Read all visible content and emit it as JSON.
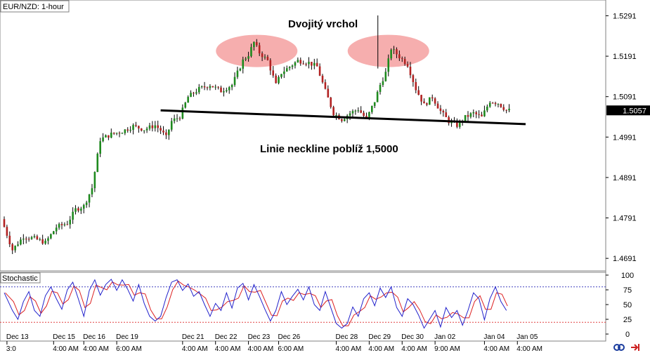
{
  "chart_data": {
    "type": "candlestick",
    "symbol_label": "EUR/NZD: 1-hour",
    "current_price_label": "1.5057",
    "ylim": [
      1.466,
      1.533
    ],
    "y_ticks": [
      "1.5291",
      "1.5191",
      "1.5091",
      "1.4991",
      "1.4891",
      "1.4791",
      "1.4691"
    ],
    "annotations": {
      "double_top": "Dvojitý vrchol",
      "neckline": "Linie neckline poblíž 1,5000"
    },
    "neckline": {
      "start_index": 57,
      "end_index": 190,
      "start_price": 1.5057,
      "end_price": 1.5023
    },
    "highlight_tops": [
      {
        "center_index": 92,
        "price": 1.5204
      },
      {
        "center_index": 140,
        "price": 1.5204
      }
    ],
    "price_path": [
      [
        0,
        1.4788
      ],
      [
        4,
        1.4712
      ],
      [
        8,
        1.4745
      ],
      [
        12,
        1.474
      ],
      [
        16,
        1.473
      ],
      [
        20,
        1.4768
      ],
      [
        24,
        1.4778
      ],
      [
        27,
        1.4812
      ],
      [
        30,
        1.482
      ],
      [
        33,
        1.4865
      ],
      [
        36,
        1.4985
      ],
      [
        40,
        1.4998
      ],
      [
        44,
        1.5005
      ],
      [
        48,
        1.5018
      ],
      [
        52,
        1.501
      ],
      [
        56,
        1.502
      ],
      [
        58,
        1.5008
      ],
      [
        60,
        1.499
      ],
      [
        62,
        1.503
      ],
      [
        65,
        1.5042
      ],
      [
        68,
        1.509
      ],
      [
        72,
        1.511
      ],
      [
        76,
        1.512
      ],
      [
        80,
        1.5105
      ],
      [
        84,
        1.512
      ],
      [
        88,
        1.518
      ],
      [
        90,
        1.5195
      ],
      [
        92,
        1.5225
      ],
      [
        94,
        1.52
      ],
      [
        97,
        1.518
      ],
      [
        100,
        1.512
      ],
      [
        102,
        1.515
      ],
      [
        105,
        1.5165
      ],
      [
        108,
        1.518
      ],
      [
        112,
        1.5175
      ],
      [
        115,
        1.5165
      ],
      [
        118,
        1.5105
      ],
      [
        121,
        1.505
      ],
      [
        124,
        1.5035
      ],
      [
        127,
        1.505
      ],
      [
        130,
        1.506
      ],
      [
        133,
        1.5035
      ],
      [
        136,
        1.508
      ],
      [
        138,
        1.512
      ],
      [
        140,
        1.515
      ],
      [
        142,
        1.521
      ],
      [
        145,
        1.519
      ],
      [
        148,
        1.517
      ],
      [
        151,
        1.511
      ],
      [
        154,
        1.507
      ],
      [
        157,
        1.509
      ],
      [
        160,
        1.5055
      ],
      [
        163,
        1.503
      ],
      [
        166,
        1.502
      ],
      [
        169,
        1.504
      ],
      [
        172,
        1.505
      ],
      [
        175,
        1.504
      ],
      [
        178,
        1.508
      ],
      [
        181,
        1.5075
      ],
      [
        184,
        1.5057
      ]
    ],
    "stochastic": {
      "label": "Stochastic",
      "ylim": [
        0,
        100
      ],
      "y_ticks": [
        "100",
        "75",
        "50",
        "25",
        "0"
      ],
      "levels": [
        80,
        20
      ],
      "path": [
        [
          0,
          70
        ],
        [
          3,
          40
        ],
        [
          5,
          25
        ],
        [
          7,
          55
        ],
        [
          9,
          72
        ],
        [
          11,
          40
        ],
        [
          13,
          30
        ],
        [
          15,
          65
        ],
        [
          17,
          80
        ],
        [
          19,
          60
        ],
        [
          21,
          42
        ],
        [
          23,
          75
        ],
        [
          25,
          88
        ],
        [
          27,
          60
        ],
        [
          29,
          30
        ],
        [
          31,
          74
        ],
        [
          33,
          92
        ],
        [
          35,
          66
        ],
        [
          37,
          84
        ],
        [
          39,
          93
        ],
        [
          41,
          74
        ],
        [
          43,
          92
        ],
        [
          45,
          76
        ],
        [
          47,
          56
        ],
        [
          49,
          84
        ],
        [
          51,
          52
        ],
        [
          53,
          30
        ],
        [
          55,
          22
        ],
        [
          57,
          30
        ],
        [
          59,
          62
        ],
        [
          61,
          88
        ],
        [
          63,
          92
        ],
        [
          65,
          74
        ],
        [
          67,
          85
        ],
        [
          69,
          64
        ],
        [
          71,
          72
        ],
        [
          73,
          50
        ],
        [
          75,
          30
        ],
        [
          77,
          52
        ],
        [
          79,
          40
        ],
        [
          81,
          70
        ],
        [
          83,
          44
        ],
        [
          85,
          78
        ],
        [
          87,
          86
        ],
        [
          89,
          58
        ],
        [
          91,
          84
        ],
        [
          93,
          64
        ],
        [
          95,
          42
        ],
        [
          97,
          22
        ],
        [
          99,
          40
        ],
        [
          101,
          72
        ],
        [
          103,
          50
        ],
        [
          105,
          64
        ],
        [
          107,
          76
        ],
        [
          109,
          58
        ],
        [
          111,
          80
        ],
        [
          113,
          50
        ],
        [
          115,
          40
        ],
        [
          117,
          72
        ],
        [
          119,
          45
        ],
        [
          121,
          18
        ],
        [
          123,
          10
        ],
        [
          125,
          18
        ],
        [
          127,
          46
        ],
        [
          129,
          30
        ],
        [
          131,
          60
        ],
        [
          133,
          70
        ],
        [
          135,
          48
        ],
        [
          137,
          78
        ],
        [
          139,
          62
        ],
        [
          141,
          80
        ],
        [
          143,
          45
        ],
        [
          145,
          30
        ],
        [
          147,
          60
        ],
        [
          149,
          50
        ],
        [
          151,
          32
        ],
        [
          153,
          10
        ],
        [
          155,
          25
        ],
        [
          157,
          40
        ],
        [
          159,
          12
        ],
        [
          161,
          45
        ],
        [
          163,
          28
        ],
        [
          165,
          40
        ],
        [
          167,
          15
        ],
        [
          169,
          40
        ],
        [
          171,
          70
        ],
        [
          173,
          60
        ],
        [
          175,
          24
        ],
        [
          177,
          60
        ],
        [
          179,
          80
        ],
        [
          181,
          55
        ],
        [
          183,
          40
        ]
      ]
    },
    "x_ticks_row1": [
      {
        "index": 1,
        "label": "Dec 13"
      },
      {
        "index": 18,
        "label": "Dec 15"
      },
      {
        "index": 29,
        "label": "Dec 16"
      },
      {
        "index": 41,
        "label": "Dec 19"
      },
      {
        "index": 65,
        "label": "Dec 21"
      },
      {
        "index": 77,
        "label": "Dec 22"
      },
      {
        "index": 89,
        "label": "Dec 23"
      },
      {
        "index": 100,
        "label": "Dec 26"
      },
      {
        "index": 121,
        "label": "Dec 28"
      },
      {
        "index": 133,
        "label": "Dec 29"
      },
      {
        "index": 145,
        "label": "Dec 30"
      },
      {
        "index": 157,
        "label": "Jan 02"
      },
      {
        "index": 175,
        "label": "Jan 04"
      },
      {
        "index": 187,
        "label": "Jan 05"
      }
    ],
    "x_ticks_row2": [
      {
        "index": 1,
        "label": "3:0"
      },
      {
        "index": 18,
        "label": "4:00 AM"
      },
      {
        "index": 29,
        "label": "4:00 AM"
      },
      {
        "index": 41,
        "label": "6:00 AM"
      },
      {
        "index": 65,
        "label": "4:00 AM"
      },
      {
        "index": 77,
        "label": "4:00 AM"
      },
      {
        "index": 89,
        "label": "4:00 AM"
      },
      {
        "index": 100,
        "label": "6:00 AM"
      },
      {
        "index": 121,
        "label": "4:00 AM"
      },
      {
        "index": 133,
        "label": "4:00 AM"
      },
      {
        "index": 145,
        "label": "4:00 AM"
      },
      {
        "index": 157,
        "label": "9:00 AM"
      },
      {
        "index": 175,
        "label": "4:00 AM"
      },
      {
        "index": 187,
        "label": "4:00 AM"
      }
    ],
    "colors": {
      "bull": "#1e8a1e",
      "bear": "#b22222",
      "highlight": "#f4a0a0",
      "stoch_k": "#2222cc",
      "stoch_d": "#dd2222",
      "upper_level": "#4040c0",
      "lower_level": "#e04040",
      "price_box": "#000000"
    },
    "icons": [
      "link-icon",
      "arrow-right-icon"
    ]
  }
}
